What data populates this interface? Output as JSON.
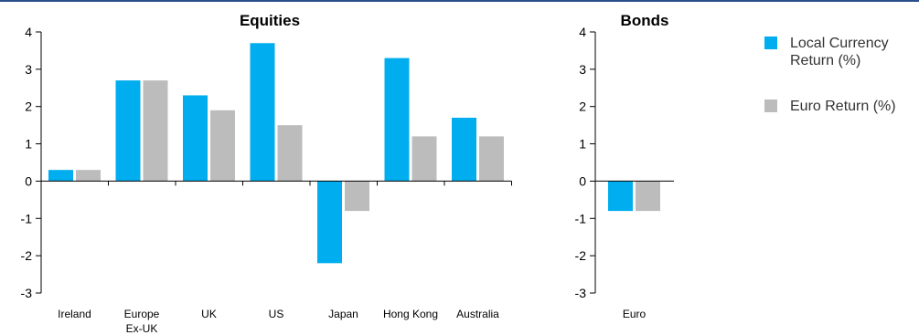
{
  "colors": {
    "top_line": "#2a4f8a",
    "local_currency": "#00aeef",
    "euro": "#bcbcbd",
    "axis": "#000000"
  },
  "legend": {
    "local_line1": "Local Currency",
    "local_line2": "Return (%)",
    "euro": "Euro Return (%)"
  },
  "chart_data": [
    {
      "type": "bar",
      "title": "Equities",
      "categories": [
        "Ireland",
        "Europe Ex-UK",
        "UK",
        "US",
        "Japan",
        "Hong Kong",
        "Australia"
      ],
      "category_lines": [
        [
          "Ireland"
        ],
        [
          "Europe",
          "Ex-UK"
        ],
        [
          "UK"
        ],
        [
          "US"
        ],
        [
          "Japan"
        ],
        [
          "Hong Kong"
        ],
        [
          "Australia"
        ]
      ],
      "series": [
        {
          "name": "Local Currency Return (%)",
          "values": [
            0.3,
            2.7,
            2.3,
            3.7,
            -2.2,
            3.3,
            1.7
          ]
        },
        {
          "name": "Euro Return (%)",
          "values": [
            0.3,
            2.7,
            1.9,
            1.5,
            -0.8,
            1.2,
            1.2
          ]
        }
      ],
      "ylim": [
        -3,
        4
      ],
      "yticks": [
        -3,
        -2,
        -1,
        0,
        1,
        2,
        3,
        4
      ],
      "grid": false,
      "legend": "right"
    },
    {
      "type": "bar",
      "title": "Bonds",
      "categories": [
        "Euro"
      ],
      "category_lines": [
        [
          "Euro"
        ]
      ],
      "series": [
        {
          "name": "Local Currency Return (%)",
          "values": [
            -0.8
          ]
        },
        {
          "name": "Euro Return (%)",
          "values": [
            -0.8
          ]
        }
      ],
      "ylim": [
        -3,
        4
      ],
      "yticks": [
        -3,
        -2,
        -1,
        0,
        1,
        2,
        3,
        4
      ],
      "grid": false,
      "legend": "right"
    }
  ]
}
